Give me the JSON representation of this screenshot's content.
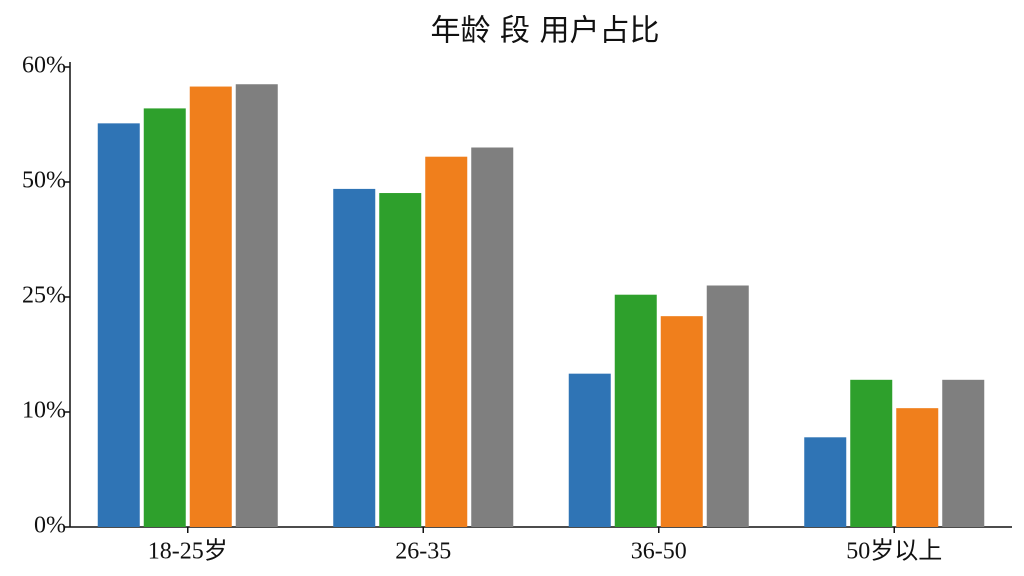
{
  "chart_data": {
    "type": "bar",
    "title": "年龄 段 用户占比",
    "categories": [
      "18-25岁",
      "26-35",
      "36-50",
      "50岁以上"
    ],
    "series": [
      {
        "color": "#2f74b5",
        "values": [
          55.1,
          48.5,
          15.0,
          7.8
        ]
      },
      {
        "color": "#2ea02c",
        "values": [
          56.4,
          47.6,
          25.5,
          14.2
        ]
      },
      {
        "color": "#f07f1c",
        "values": [
          58.3,
          52.2,
          22.5,
          10.5
        ]
      },
      {
        "color": "#7f7f7f",
        "values": [
          58.5,
          53.0,
          27.5,
          14.2
        ]
      }
    ],
    "ylim": [
      0,
      60
    ],
    "yticks": [
      {
        "value": 0,
        "label": "0%"
      },
      {
        "value": 10,
        "label": "10%"
      },
      {
        "value": 25,
        "label": "25%"
      },
      {
        "value": 50,
        "label": "50%"
      },
      {
        "value": 60,
        "label": "60%"
      }
    ]
  }
}
